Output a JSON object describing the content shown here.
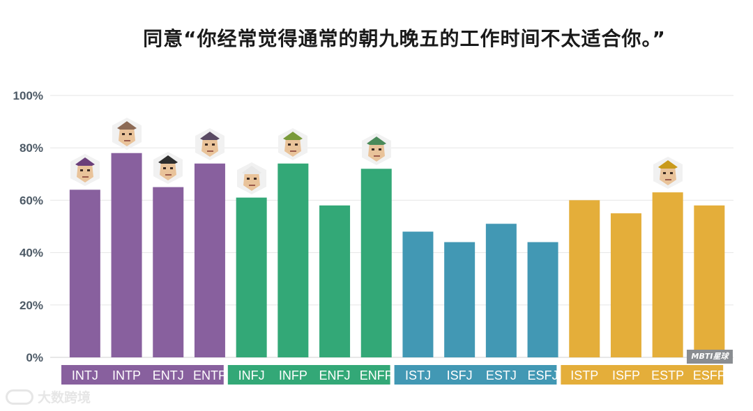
{
  "title": "同意“你经常觉得通常的朝九晚五的工作时间不太适合你。”",
  "watermark": "MBTI星球",
  "source_label": "大数跨境",
  "colors": {
    "analysts": "#88609e",
    "diplomats": "#33a877",
    "sentinels": "#4298b4",
    "explorers": "#e4ae3a",
    "grid": "#e6e6e6"
  },
  "chart_data": {
    "type": "bar",
    "title": "同意“你经常觉得通常的朝九晚五的工作时间不太适合你。”",
    "xlabel": "",
    "ylabel": "",
    "ylim": [
      0,
      100
    ],
    "yticks": [
      "0%",
      "20%",
      "40%",
      "60%",
      "80%",
      "100%"
    ],
    "categories": [
      "INTJ",
      "INTP",
      "ENTJ",
      "ENTP",
      "INFJ",
      "INFP",
      "ENFJ",
      "ENFP",
      "ISTJ",
      "ISFJ",
      "ESTJ",
      "ESFJ",
      "ISTP",
      "ISFP",
      "ESTP",
      "ESFP"
    ],
    "values": [
      64,
      78,
      65,
      74,
      61,
      74,
      58,
      72,
      48,
      44,
      51,
      44,
      60,
      55,
      63,
      58
    ],
    "groups": [
      "analysts",
      "analysts",
      "analysts",
      "analysts",
      "diplomats",
      "diplomats",
      "diplomats",
      "diplomats",
      "sentinels",
      "sentinels",
      "sentinels",
      "sentinels",
      "explorers",
      "explorers",
      "explorers",
      "explorers"
    ],
    "avatar_on": [
      "INTJ",
      "INTP",
      "ENTJ",
      "ENTP",
      "INFJ",
      "INFP",
      "ENFP",
      "ESTP"
    ],
    "grid": true,
    "legend": "none"
  }
}
